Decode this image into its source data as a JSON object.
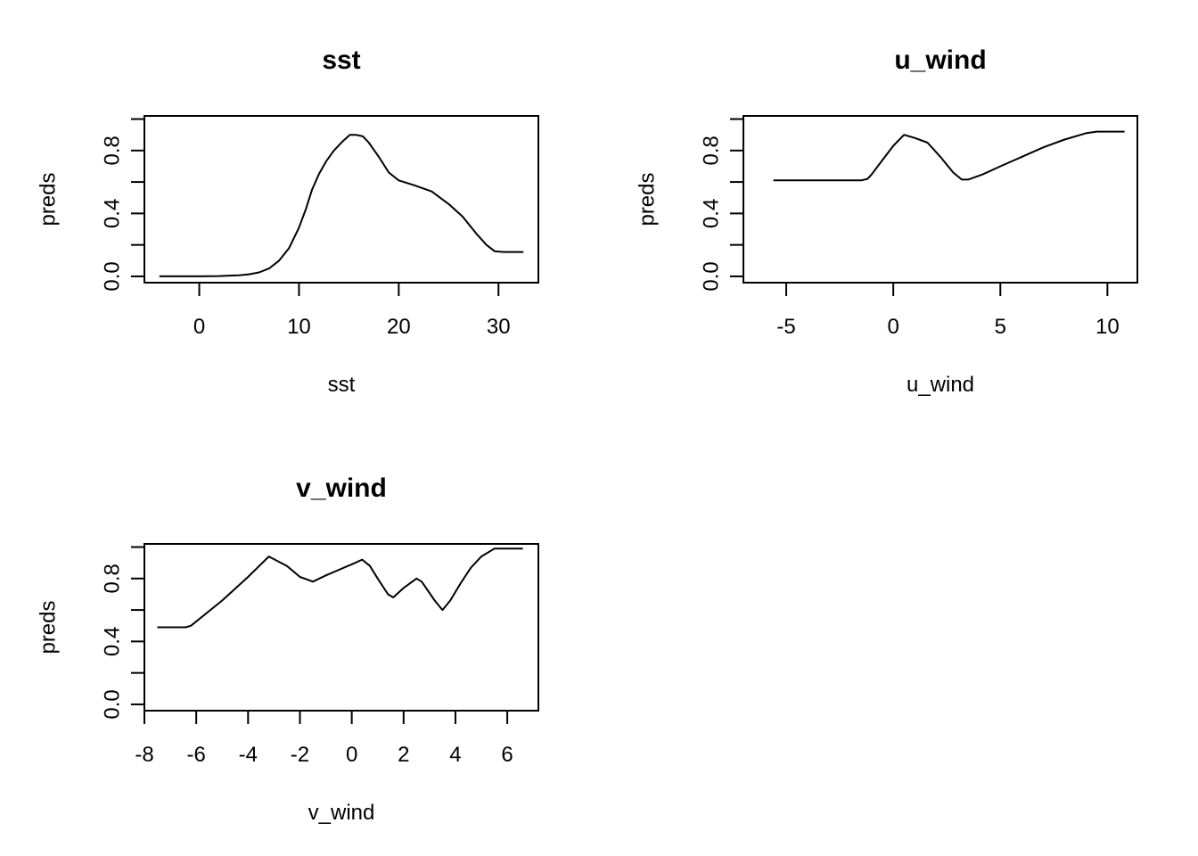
{
  "chart_data": [
    {
      "type": "line",
      "title": "sst",
      "xlabel": "sst",
      "ylabel": "preds",
      "xlim": [
        -5.5,
        34
      ],
      "ylim": [
        -0.04,
        1.02
      ],
      "x_ticks": [
        0,
        10,
        20,
        30
      ],
      "x_tick_labels": [
        "0",
        "10",
        "20",
        "30"
      ],
      "y_ticks": [
        0.0,
        0.2,
        0.4,
        0.6,
        0.8,
        1.0
      ],
      "y_tick_labels": [
        "0.0",
        "",
        "0.4",
        "",
        "0.8",
        ""
      ],
      "grid": false,
      "series": [
        {
          "x": [
            -4,
            0,
            2,
            4,
            5,
            6,
            7,
            8,
            9,
            10,
            10.7,
            11.3,
            12,
            12.7,
            13.5,
            14.4,
            15.1,
            15.7,
            16.4,
            17,
            18,
            19,
            20,
            21.5,
            23.3,
            25,
            26.4,
            27.8,
            28.8,
            29.6,
            30.5,
            32.5
          ],
          "values": [
            0.0,
            0.0,
            0.002,
            0.007,
            0.013,
            0.025,
            0.05,
            0.1,
            0.18,
            0.31,
            0.43,
            0.55,
            0.65,
            0.73,
            0.8,
            0.86,
            0.9,
            0.9,
            0.89,
            0.85,
            0.76,
            0.66,
            0.61,
            0.58,
            0.54,
            0.46,
            0.38,
            0.27,
            0.2,
            0.16,
            0.155,
            0.155
          ]
        }
      ]
    },
    {
      "type": "line",
      "title": "u_wind",
      "xlabel": "u_wind",
      "ylabel": "preds",
      "xlim": [
        -7,
        11.4
      ],
      "ylim": [
        -0.04,
        1.02
      ],
      "x_ticks": [
        -5,
        0,
        5,
        10
      ],
      "x_tick_labels": [
        "-5",
        "0",
        "5",
        "10"
      ],
      "y_ticks": [
        0.0,
        0.2,
        0.4,
        0.6,
        0.8,
        1.0
      ],
      "y_tick_labels": [
        "0.0",
        "",
        "0.4",
        "",
        "0.8",
        ""
      ],
      "grid": false,
      "series": [
        {
          "x": [
            -5.6,
            -3,
            -1.5,
            -1.2,
            -1.0,
            -0.5,
            0,
            0.5,
            1.0,
            1.6,
            2.2,
            2.8,
            3.2,
            3.5,
            4.2,
            5,
            6,
            7,
            8,
            9,
            9.5,
            10.8
          ],
          "values": [
            0.61,
            0.61,
            0.61,
            0.62,
            0.65,
            0.74,
            0.83,
            0.9,
            0.88,
            0.85,
            0.76,
            0.66,
            0.615,
            0.615,
            0.65,
            0.7,
            0.76,
            0.82,
            0.87,
            0.91,
            0.92,
            0.92
          ]
        }
      ]
    },
    {
      "type": "line",
      "title": "v_wind",
      "xlabel": "v_wind",
      "ylabel": "preds",
      "xlim": [
        -8,
        7.2
      ],
      "ylim": [
        -0.04,
        1.02
      ],
      "x_ticks": [
        -8,
        -6,
        -4,
        -2,
        0,
        2,
        4,
        6
      ],
      "x_tick_labels": [
        "-8",
        "-6",
        "-4",
        "-2",
        "0",
        "2",
        "4",
        "6"
      ],
      "y_ticks": [
        0.0,
        0.2,
        0.4,
        0.6,
        0.8,
        1.0
      ],
      "y_tick_labels": [
        "0.0",
        "",
        "0.4",
        "",
        "0.8",
        ""
      ],
      "grid": false,
      "series": [
        {
          "x": [
            -7.5,
            -6.4,
            -6.2,
            -5,
            -4,
            -3.2,
            -2.5,
            -2,
            -1.5,
            -1,
            0,
            0.4,
            0.7,
            1.0,
            1.4,
            1.6,
            2.0,
            2.5,
            2.7,
            3.2,
            3.5,
            3.8,
            4.2,
            4.6,
            5.0,
            5.5,
            6.6
          ],
          "values": [
            0.49,
            0.49,
            0.5,
            0.66,
            0.81,
            0.94,
            0.88,
            0.81,
            0.78,
            0.82,
            0.89,
            0.92,
            0.88,
            0.8,
            0.7,
            0.68,
            0.74,
            0.8,
            0.78,
            0.66,
            0.6,
            0.66,
            0.77,
            0.87,
            0.94,
            0.99,
            0.99
          ]
        }
      ]
    }
  ]
}
